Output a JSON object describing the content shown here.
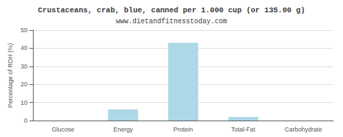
{
  "chart_data": {
    "type": "bar",
    "title": "Crustaceans, crab, blue, canned per 1.000 cup (or 135.00 g)",
    "subtitle": "www.dietandfitnesstoday.com",
    "categories": [
      "Glucose",
      "Energy",
      "Protein",
      "Total-Fat",
      "Carbohydrate"
    ],
    "values": [
      0.0,
      6.2,
      43.0,
      2.0,
      0.0
    ],
    "color": "#add8e6",
    "ylabel": "Percentage of RDH (%)",
    "ylim": [
      0,
      50
    ],
    "yticks": [
      0,
      10,
      20,
      30,
      40,
      50
    ],
    "grid": true
  }
}
